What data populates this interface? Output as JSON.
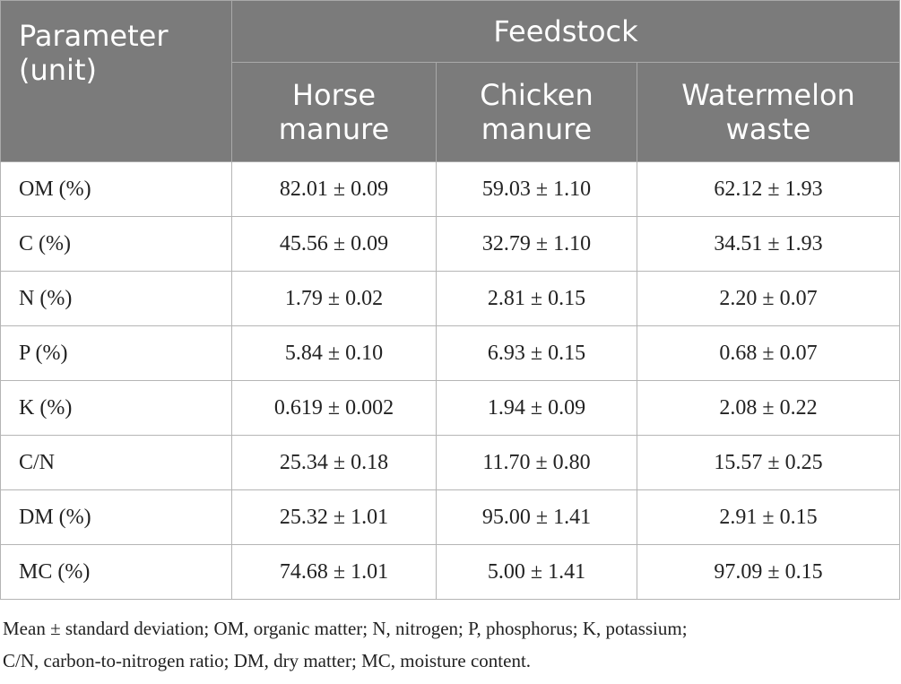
{
  "header": {
    "parameter_line1": "Parameter",
    "parameter_line2": "(unit)",
    "group_label": "Feedstock",
    "columns": [
      {
        "line1": "Horse",
        "line2": "manure"
      },
      {
        "line1": "Chicken",
        "line2": "manure"
      },
      {
        "line1": "Watermelon",
        "line2": "waste"
      }
    ]
  },
  "rows": [
    {
      "label": "OM (%)",
      "values": [
        "82.01 ± 0.09",
        "59.03 ± 1.10",
        "62.12 ± 1.93"
      ]
    },
    {
      "label": "C (%)",
      "values": [
        "45.56 ± 0.09",
        "32.79 ± 1.10",
        "34.51 ± 1.93"
      ]
    },
    {
      "label": "N (%)",
      "values": [
        "1.79 ± 0.02",
        "2.81 ± 0.15",
        "2.20 ± 0.07"
      ]
    },
    {
      "label": "P (%)",
      "values": [
        "5.84 ± 0.10",
        "6.93 ± 0.15",
        "0.68 ± 0.07"
      ]
    },
    {
      "label": "K (%)",
      "values": [
        "0.619 ± 0.002",
        "1.94 ± 0.09",
        "2.08 ± 0.22"
      ]
    },
    {
      "label": "C/N",
      "values": [
        "25.34 ± 0.18",
        "11.70 ± 0.80",
        "15.57 ± 0.25"
      ]
    },
    {
      "label": "DM (%)",
      "values": [
        "25.32 ± 1.01",
        "95.00 ± 1.41",
        "2.91 ± 0.15"
      ]
    },
    {
      "label": "MC (%)",
      "values": [
        "74.68 ± 1.01",
        "5.00 ± 1.41",
        "97.09 ± 0.15"
      ]
    }
  ],
  "footnote": {
    "line1": "Mean ± standard deviation; OM, organic matter; N, nitrogen; P, phosphorus; K, potassium;",
    "line2": "C/N, carbon-to-nitrogen ratio; DM, dry matter; MC, moisture content."
  },
  "colors": {
    "header_background": "#7b7b7b",
    "header_text": "#ffffff",
    "body_text": "#222222"
  }
}
